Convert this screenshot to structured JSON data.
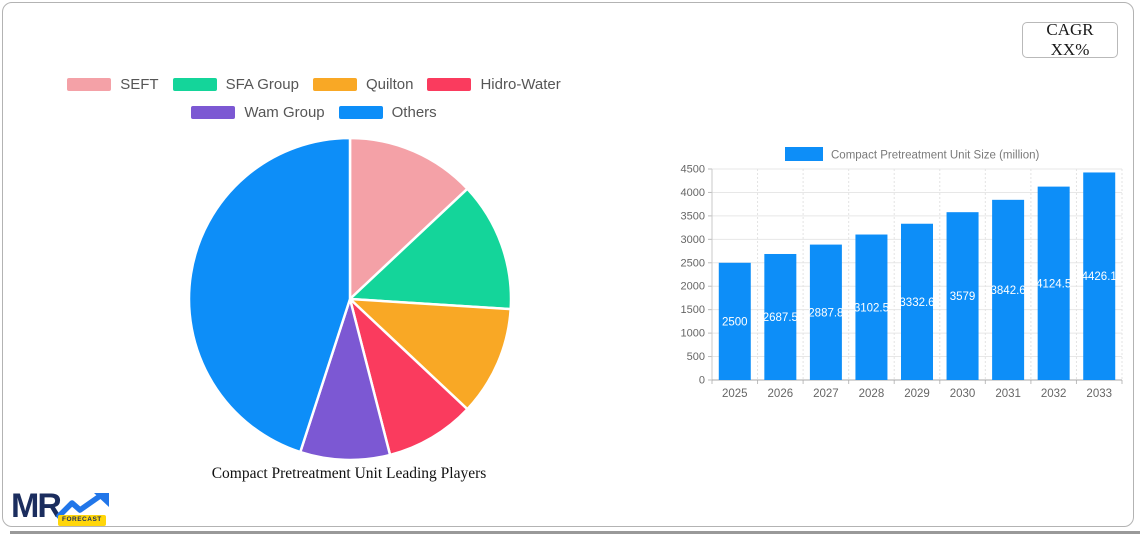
{
  "header": {
    "cagr_label": "CAGR XX%"
  },
  "logo": {
    "brand": "MR",
    "badge": "FORECAST"
  },
  "chart_data": [
    {
      "type": "pie",
      "title": "Compact Pretreatment Unit Leading Players",
      "legend_position": "top",
      "labels": [
        "SEFT",
        "SFA Group",
        "Quilton",
        "Hidro-Water",
        "Wam Group",
        "Others"
      ],
      "values": [
        13,
        13,
        11,
        9,
        9,
        45
      ],
      "colors": [
        "#F4A1A7",
        "#14D59A",
        "#F9A825",
        "#FA3B5E",
        "#7C58D3",
        "#0D8EF8"
      ]
    },
    {
      "type": "bar",
      "legend_label": "Compact Pretreatment Unit Size (million)",
      "legend_position": "top",
      "categories": [
        "2025",
        "2026",
        "2027",
        "2028",
        "2029",
        "2030",
        "2031",
        "2032",
        "2033"
      ],
      "values": [
        2500,
        2687.5,
        2887.8,
        3102.5,
        3332.6,
        3579,
        3842.6,
        4124.5,
        4426.1
      ],
      "value_labels": [
        "2500",
        "2687.5",
        "2887.8",
        "3102.5",
        "3332.6",
        "3579",
        "3842.6",
        "4124.5",
        "4426.1"
      ],
      "color": "#0D8EF8",
      "ylim": [
        0,
        4500
      ],
      "y_tick_step": 500,
      "grid": true
    }
  ]
}
